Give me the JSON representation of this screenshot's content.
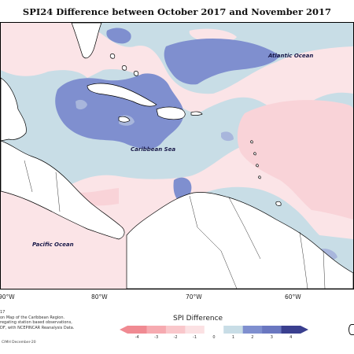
{
  "title": "SPI24 Difference between October 2017 and November 2017",
  "ocean_labels": {
    "atlantic": "Atlantic Ocean",
    "caribbean": "Caribbean Sea",
    "pacific": "Pacific Ocean"
  },
  "longitude_labels": [
    "90°W",
    "80°W",
    "70°W",
    "60°W"
  ],
  "legend": {
    "title": "SPI Difference",
    "ticks": [
      "-4",
      "-3",
      "-2",
      "-1",
      "0",
      "1",
      "2",
      "3",
      "4"
    ],
    "colors": [
      "#f08a92",
      "#f6aab0",
      "#f9c7cb",
      "#fbe1e3",
      "#ffffff",
      "#c8dde6",
      "#7f8fcf",
      "#6a77c0",
      "#3a3f8f"
    ]
  },
  "footnote": {
    "line0": "17",
    "line1": "on Map of the Caribbean Region.",
    "line2": "regating station based observations,",
    "line3": "DF, with NCEPINCAR Reanalysis Data."
  },
  "credit": "CIMH December-20",
  "colors": {
    "land": "#ffffff",
    "coast": "#000000",
    "strong_positive": "#7f8fcf",
    "weak_positive": "#c8dde6",
    "weak_negative": "#f9d6da"
  }
}
